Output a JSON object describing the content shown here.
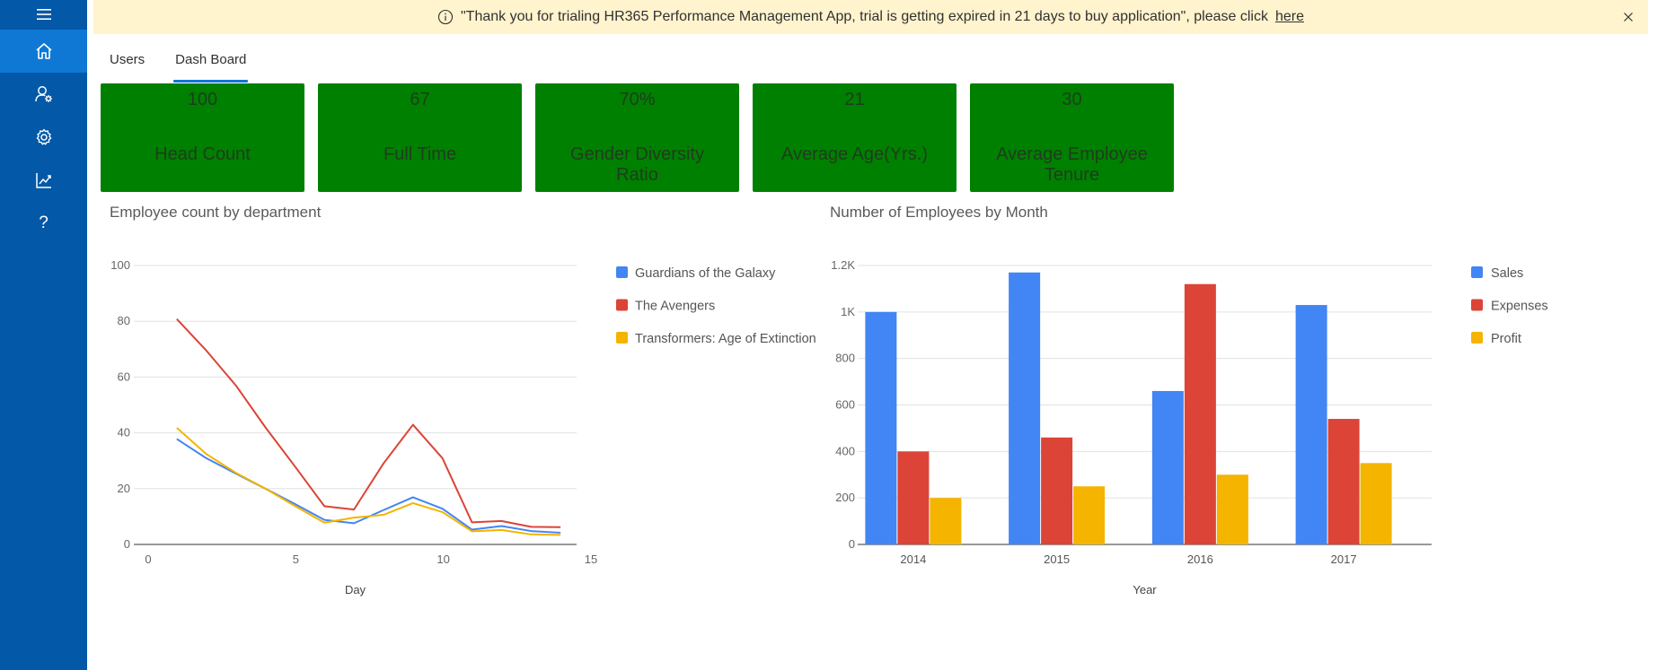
{
  "banner": {
    "message": "\"Thank you for trialing HR365 Performance Management App, trial is getting expired in 21 days to buy application\", please click",
    "link_text": "here"
  },
  "sidebar": {
    "items": [
      {
        "name": "home-icon",
        "active": true
      },
      {
        "name": "user-settings-icon",
        "active": false
      },
      {
        "name": "gear-icon",
        "active": false
      },
      {
        "name": "analytics-icon",
        "active": false
      },
      {
        "name": "help-icon",
        "active": false,
        "glyph": "?"
      }
    ]
  },
  "tabs": [
    {
      "label": "Users",
      "active": false
    },
    {
      "label": "Dash Board",
      "active": true
    }
  ],
  "kpis": [
    {
      "value": "100",
      "label": "Head Count"
    },
    {
      "value": "67",
      "label": "Full Time"
    },
    {
      "value": "70%",
      "label": "Gender Diversity Ratio"
    },
    {
      "value": "21",
      "label": "Average Age(Yrs.)"
    },
    {
      "value": "30",
      "label": "Average Employee Tenure"
    }
  ],
  "colors": {
    "sidebar": "#0358a7",
    "sidebar_active": "#0f78d4",
    "banner": "#fff4ce",
    "kpi": "#008000",
    "series_blue": "#4285f4",
    "series_red": "#db4437",
    "series_yellow": "#f4b400"
  },
  "chart_data": [
    {
      "type": "line",
      "title": "Employee count by department",
      "xlabel": "Day",
      "ylabel": "",
      "xlim": [
        0,
        15
      ],
      "ylim": [
        0,
        100
      ],
      "xticks": [
        "0",
        "5",
        "10",
        "15"
      ],
      "yticks": [
        "0",
        "20",
        "40",
        "60",
        "80",
        "100"
      ],
      "grid": true,
      "legend": "right",
      "x": [
        1,
        2,
        3,
        4,
        5,
        6,
        7,
        8,
        9,
        10,
        11,
        12,
        13,
        14
      ],
      "series": [
        {
          "name": "Guardians of the Galaxy",
          "color": "#4285f4",
          "values": [
            37.8,
            30.9,
            25.4,
            20.0,
            14.5,
            8.8,
            7.6,
            12.3,
            16.9,
            12.8,
            5.3,
            6.6,
            4.8,
            4.2
          ]
        },
        {
          "name": "The Avengers",
          "color": "#db4437",
          "values": [
            80.8,
            69.5,
            57.0,
            42.0,
            28.0,
            13.7,
            12.5,
            29.0,
            42.9,
            30.9,
            7.9,
            8.4,
            6.3,
            6.2
          ]
        },
        {
          "name": "Transformers: Age of Extinction",
          "color": "#f4b400",
          "values": [
            41.8,
            32.4,
            25.7,
            20.0,
            13.8,
            7.8,
            9.6,
            10.6,
            14.8,
            11.6,
            4.7,
            5.2,
            3.6,
            3.4
          ]
        }
      ]
    },
    {
      "type": "bar",
      "title": "Number of Employees by Month",
      "xlabel": "Year",
      "ylabel": "",
      "ylim": [
        0,
        1200
      ],
      "yticks": [
        "0",
        "200",
        "400",
        "600",
        "800",
        "1K",
        "1.2K"
      ],
      "grid": true,
      "legend": "right",
      "categories": [
        "2014",
        "2015",
        "2016",
        "2017"
      ],
      "series": [
        {
          "name": "Sales",
          "color": "#4285f4",
          "values": [
            1000,
            1170,
            660,
            1030
          ]
        },
        {
          "name": "Expenses",
          "color": "#db4437",
          "values": [
            400,
            460,
            1120,
            540
          ]
        },
        {
          "name": "Profit",
          "color": "#f4b400",
          "values": [
            200,
            250,
            300,
            350
          ]
        }
      ]
    }
  ]
}
